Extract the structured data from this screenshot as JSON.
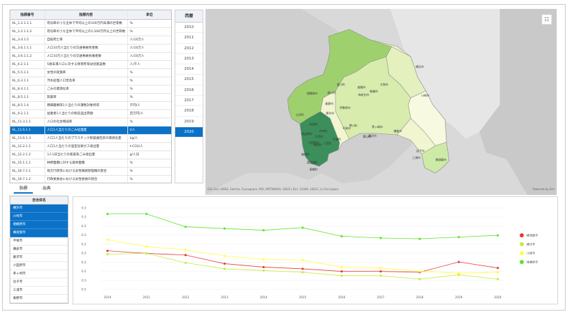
{
  "table": {
    "headers": [
      "指標番号",
      "指標内容",
      "単位"
    ],
    "rows": [
      [
        "KL_1.2.1.1.1",
        "有効率のうち全体で平均以上の100万円未満の世帯数",
        "%"
      ],
      [
        "KL_1.2.1.1.2",
        "有効率のうち全体で平均以上の1,500万円以上の世帯数",
        "%"
      ],
      [
        "KL_3.4.1.5",
        "自殺死亡率",
        "人/10万人"
      ],
      [
        "KL_3.6.1.1.1",
        "人口10万人当たりの交通事故死者数",
        "人/10万人"
      ],
      [
        "KL_3.6.1.1.2",
        "人口10万人当たりの交通事故負傷者数",
        "人/10万人"
      ],
      [
        "KL_4.2.1.1",
        "5歳未満人口に対する保育所等幼児施設数",
        "人/千人"
      ],
      [
        "KL_5.5.1.1",
        "女性の就業率",
        "%"
      ],
      [
        "KL_6.3.1.1",
        "汚水処理人口普及率",
        "%"
      ],
      [
        "KL_8.4.1.1",
        "ごみの資源化率",
        "%"
      ],
      [
        "KL_8.5.1.1",
        "就業率",
        "%"
      ],
      [
        "KL_8.5.1.4",
        "明細書類等1人当たりの課税対象所得",
        "千円/人"
      ],
      [
        "KL_9.2.1.1",
        "従業者1人当たりの製造品出荷額",
        "百万円/人"
      ],
      [
        "KL_11.3.1.1",
        "人口の社会増減率",
        "%"
      ],
      [
        "KL_11.6.1.1",
        "人口1人当たりのごみ処理量",
        "t/人"
      ],
      [
        "KL_11.6.1.3",
        "人口1人当たりのプラスチック製容器包装の資源化量",
        "kg/人"
      ],
      [
        "KL_12.2.1.1",
        "人口1人当たりの温室効果ガス排出量",
        "t-CO2/人"
      ],
      [
        "KL_12.2.1.2",
        "1人1日当たりの家庭系ごみ排出量",
        "g/人日"
      ],
      [
        "KL_15.1.1.1",
        "林野面積に対する森林面積",
        "%"
      ],
      [
        "KL_16.7.1.1",
        "地方行政等における女性職員管理職の割合",
        "%"
      ],
      [
        "KL_16.7.1.2",
        "行政委員会における女性委員の割合",
        "%"
      ]
    ],
    "selected_index": 13
  },
  "tabs": [
    "指標",
    "出典"
  ],
  "years": {
    "header": "西暦",
    "items": [
      "2010",
      "2011",
      "2012",
      "2013",
      "2014",
      "2015",
      "2016",
      "2017",
      "2018",
      "2019",
      "2020"
    ],
    "selected": "2020"
  },
  "map": {
    "attribution": "GSI, Esri, HERE, Garmin, Foursquare, FAO, METI/NASA, USGS | Esri, CGIAR, USGS | (c) Esri Japan",
    "powered": "Powered by Esri",
    "layer_button": "layer-list-icon",
    "labels": [
      "相模原市",
      "厚木市",
      "横浜市",
      "川崎市",
      "藤沢市",
      "平塚市",
      "小田原市",
      "横須賀市",
      "鎌倉市",
      "茅ヶ崎市",
      "大和市",
      "海老名市",
      "座間市",
      "綾瀬市",
      "伊勢原市",
      "秦野市",
      "南足柄市",
      "逗子市",
      "三浦市",
      "葉山町",
      "寒川町",
      "大磯町",
      "二宮町",
      "中井町",
      "大井町",
      "松田町",
      "山北町",
      "開成町",
      "箱根町",
      "真鶴町",
      "湯河原町",
      "愛川町",
      "清川村"
    ]
  },
  "municipalities": {
    "header": "自治体名",
    "items": [
      "横浜市",
      "川崎市",
      "相模原市",
      "横須賀市",
      "平塚市",
      "鎌倉市",
      "藤沢市",
      "小田原市",
      "茅ヶ崎市",
      "逗子市",
      "三浦市",
      "秦野市"
    ],
    "selected": [
      "横浜市",
      "川崎市",
      "相模原市",
      "横須賀市"
    ]
  },
  "chart_data": {
    "type": "line",
    "x": [
      "2010",
      "2011",
      "2012",
      "2013",
      "2014",
      "2015",
      "2016",
      "2017",
      "2018",
      "2019",
      "2020"
    ],
    "yticks": [
      "0.3",
      "0.3",
      "0.3",
      "0.3",
      "0.3",
      "0.3",
      "0.3",
      "0.3",
      "0.3",
      "0.3"
    ],
    "series": [
      {
        "name": "横須賀市",
        "color": "#e53935",
        "values": [
          0.3045,
          0.3042,
          0.304,
          0.303,
          0.3026,
          0.3024,
          0.3021,
          0.3021,
          0.302,
          0.3032,
          0.3025
        ]
      },
      {
        "name": "横浜市",
        "color": "#c6ea3c",
        "values": [
          0.3041,
          0.3042,
          0.3031,
          0.3024,
          0.3022,
          0.302,
          0.3016,
          0.3016,
          0.3012,
          0.3017,
          0.3012
        ]
      },
      {
        "name": "川崎市",
        "color": "#ffff38",
        "values": [
          0.3058,
          0.305,
          0.3046,
          0.3039,
          0.3035,
          0.3034,
          0.3026,
          0.3025,
          0.3021,
          0.3019,
          0.302
        ]
      },
      {
        "name": "相模原市",
        "color": "#5ce32a",
        "values": [
          0.3088,
          0.3088,
          0.3073,
          0.3071,
          0.3069,
          0.3072,
          0.3062,
          0.306,
          0.3059,
          0.3061,
          0.3063
        ]
      }
    ]
  }
}
